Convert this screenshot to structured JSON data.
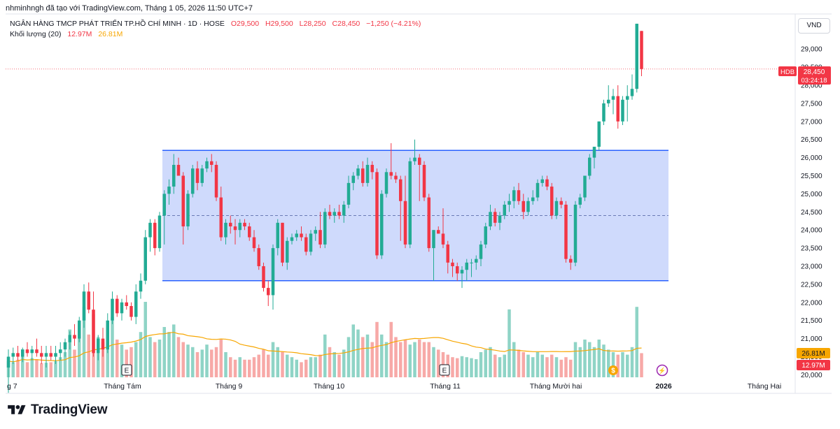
{
  "header": {
    "attribution": "nhminhngh đã tạo với TradingView.com, Tháng 1 05, 2026 11:50 UTC+7"
  },
  "legend": {
    "symbol_title": "NGÂN HÀNG TMCP PHÁT TRIỂN TP.HỒ CHÍ MINH · 1D · HOSE",
    "open": "O29,500",
    "high": "H29,500",
    "low": "L28,250",
    "close": "C28,450",
    "change": "−1,250 (−4.21%)",
    "volume_label": "Khối lượng (20)",
    "volume_value": "12.97M",
    "volume_ma_value": "26.81M"
  },
  "currency": "VND",
  "price_badges": {
    "ticker": "HDB",
    "last_price": "28,450",
    "countdown": "03:24:18",
    "volume_ma_badge": "26.81M",
    "volume_badge": "12.97M"
  },
  "event_markers": [
    {
      "label": "E",
      "type": "earnings"
    },
    {
      "label": "E",
      "type": "earnings"
    },
    {
      "label": "$",
      "type": "dividend"
    },
    {
      "label": "⚡",
      "type": "split"
    }
  ],
  "brand": {
    "name": "TradingView"
  },
  "colors": {
    "up": "#22ab94",
    "down": "#f23645",
    "up_volume": "#8fd4c6",
    "down_volume": "#f7a9a7",
    "channel_fill": "#c7d3fb",
    "channel_line": "#2962ff",
    "volume_ma": "#f7a600"
  },
  "chart_data": {
    "type": "candlestick",
    "timeframe": "1D",
    "y_axis_ticks": [
      "29,000",
      "28,500",
      "28,000",
      "27,500",
      "27,000",
      "26,500",
      "26,000",
      "25,500",
      "25,000",
      "24,500",
      "24,000",
      "23,500",
      "23,000",
      "22,500",
      "22,000",
      "21,500",
      "21,000",
      "20,500",
      "20,000"
    ],
    "x_axis_ticks": [
      "g 7",
      "Tháng Tám",
      "Tháng 9",
      "Tháng 10",
      "Tháng 11",
      "Tháng Mười hai",
      "2026",
      "Tháng Hai"
    ],
    "ylim": [
      19950,
      29950
    ],
    "channel": {
      "upper": 26200,
      "lower": 22600,
      "mid": 24400,
      "start_date": "2025-08-01",
      "end_date": "2026-01-05"
    },
    "last_price": 28450,
    "candles": [
      {
        "o": 20200,
        "h": 20700,
        "l": 19500,
        "c": 20500,
        "v": 0.32
      },
      {
        "o": 20500,
        "h": 20750,
        "l": 20300,
        "c": 20600,
        "v": 0.3
      },
      {
        "o": 20600,
        "h": 20800,
        "l": 20400,
        "c": 20500,
        "v": 0.35
      },
      {
        "o": 20500,
        "h": 20750,
        "l": 20350,
        "c": 20700,
        "v": 0.45
      },
      {
        "o": 20700,
        "h": 20900,
        "l": 20500,
        "c": 20600,
        "v": 0.3
      },
      {
        "o": 20600,
        "h": 20800,
        "l": 20400,
        "c": 20700,
        "v": 0.38
      },
      {
        "o": 20700,
        "h": 21000,
        "l": 20500,
        "c": 20600,
        "v": 0.36
      },
      {
        "o": 20600,
        "h": 20800,
        "l": 20300,
        "c": 20500,
        "v": 0.28
      },
      {
        "o": 20500,
        "h": 20800,
        "l": 20200,
        "c": 20600,
        "v": 0.29
      },
      {
        "o": 20600,
        "h": 20800,
        "l": 20400,
        "c": 20500,
        "v": 0.3
      },
      {
        "o": 20500,
        "h": 20800,
        "l": 20300,
        "c": 20600,
        "v": 0.32
      },
      {
        "o": 20600,
        "h": 20900,
        "l": 20400,
        "c": 20700,
        "v": 0.4
      },
      {
        "o": 20700,
        "h": 21000,
        "l": 20500,
        "c": 20900,
        "v": 0.5
      },
      {
        "o": 20900,
        "h": 21200,
        "l": 20700,
        "c": 21100,
        "v": 0.95
      },
      {
        "o": 21100,
        "h": 21400,
        "l": 20800,
        "c": 21000,
        "v": 0.55
      },
      {
        "o": 21000,
        "h": 21600,
        "l": 20900,
        "c": 21500,
        "v": 0.8
      },
      {
        "o": 21500,
        "h": 22500,
        "l": 21300,
        "c": 22300,
        "v": 1.4
      },
      {
        "o": 22300,
        "h": 22550,
        "l": 21700,
        "c": 21800,
        "v": 0.85
      },
      {
        "o": 21800,
        "h": 22300,
        "l": 20500,
        "c": 20600,
        "v": 1.25
      },
      {
        "o": 20600,
        "h": 21100,
        "l": 20400,
        "c": 21000,
        "v": 0.8
      },
      {
        "o": 21000,
        "h": 21300,
        "l": 20500,
        "c": 20700,
        "v": 0.7
      },
      {
        "o": 20700,
        "h": 21700,
        "l": 20600,
        "c": 21500,
        "v": 0.85
      },
      {
        "o": 21500,
        "h": 22300,
        "l": 21400,
        "c": 22100,
        "v": 1.2
      },
      {
        "o": 22100,
        "h": 22200,
        "l": 21600,
        "c": 21700,
        "v": 0.75
      },
      {
        "o": 21700,
        "h": 22100,
        "l": 21500,
        "c": 22000,
        "v": 0.65
      },
      {
        "o": 22000,
        "h": 22200,
        "l": 21800,
        "c": 21900,
        "v": 0.55
      },
      {
        "o": 21900,
        "h": 22000,
        "l": 21500,
        "c": 21600,
        "v": 0.6
      },
      {
        "o": 21600,
        "h": 22500,
        "l": 21400,
        "c": 22300,
        "v": 0.7
      },
      {
        "o": 22300,
        "h": 22800,
        "l": 22100,
        "c": 22600,
        "v": 0.9
      },
      {
        "o": 22600,
        "h": 24000,
        "l": 22500,
        "c": 23800,
        "v": 1.5
      },
      {
        "o": 23800,
        "h": 24300,
        "l": 23400,
        "c": 24200,
        "v": 0.8
      },
      {
        "o": 24200,
        "h": 24300,
        "l": 23300,
        "c": 23500,
        "v": 0.7
      },
      {
        "o": 23500,
        "h": 24500,
        "l": 23400,
        "c": 24400,
        "v": 0.75
      },
      {
        "o": 24400,
        "h": 25100,
        "l": 23600,
        "c": 25000,
        "v": 1.0
      },
      {
        "o": 25000,
        "h": 25400,
        "l": 24700,
        "c": 25200,
        "v": 0.9
      },
      {
        "o": 25200,
        "h": 26100,
        "l": 25000,
        "c": 25800,
        "v": 1.05
      },
      {
        "o": 25800,
        "h": 26000,
        "l": 25500,
        "c": 25500,
        "v": 0.8
      },
      {
        "o": 25500,
        "h": 25600,
        "l": 23600,
        "c": 24100,
        "v": 0.7
      },
      {
        "o": 24100,
        "h": 25100,
        "l": 24000,
        "c": 25000,
        "v": 0.65
      },
      {
        "o": 25000,
        "h": 25800,
        "l": 24900,
        "c": 25700,
        "v": 0.6
      },
      {
        "o": 25700,
        "h": 25900,
        "l": 25100,
        "c": 25300,
        "v": 0.5
      },
      {
        "o": 25300,
        "h": 25800,
        "l": 25200,
        "c": 25700,
        "v": 0.55
      },
      {
        "o": 25700,
        "h": 26000,
        "l": 25600,
        "c": 25900,
        "v": 0.65
      },
      {
        "o": 25900,
        "h": 26100,
        "l": 25600,
        "c": 25800,
        "v": 0.55
      },
      {
        "o": 25800,
        "h": 25900,
        "l": 24800,
        "c": 24900,
        "v": 0.6
      },
      {
        "o": 24900,
        "h": 25200,
        "l": 23700,
        "c": 23800,
        "v": 0.75
      },
      {
        "o": 23800,
        "h": 24300,
        "l": 23600,
        "c": 24200,
        "v": 0.5
      },
      {
        "o": 24200,
        "h": 24400,
        "l": 23900,
        "c": 24100,
        "v": 0.4
      },
      {
        "o": 24100,
        "h": 24300,
        "l": 23600,
        "c": 24000,
        "v": 0.35
      },
      {
        "o": 24000,
        "h": 24300,
        "l": 23800,
        "c": 24200,
        "v": 0.4
      },
      {
        "o": 24200,
        "h": 24300,
        "l": 24000,
        "c": 24100,
        "v": 0.35
      },
      {
        "o": 24100,
        "h": 24200,
        "l": 23700,
        "c": 23800,
        "v": 0.35
      },
      {
        "o": 23800,
        "h": 24000,
        "l": 23400,
        "c": 23500,
        "v": 0.4
      },
      {
        "o": 23500,
        "h": 23600,
        "l": 22900,
        "c": 23000,
        "v": 0.45
      },
      {
        "o": 23000,
        "h": 23100,
        "l": 22300,
        "c": 22400,
        "v": 0.55
      },
      {
        "o": 22400,
        "h": 22600,
        "l": 21900,
        "c": 22200,
        "v": 0.45
      },
      {
        "o": 22200,
        "h": 23600,
        "l": 21800,
        "c": 23500,
        "v": 0.7
      },
      {
        "o": 23500,
        "h": 24300,
        "l": 23300,
        "c": 24200,
        "v": 0.6
      },
      {
        "o": 24200,
        "h": 24200,
        "l": 23000,
        "c": 23100,
        "v": 0.5
      },
      {
        "o": 23100,
        "h": 23800,
        "l": 22900,
        "c": 23700,
        "v": 0.45
      },
      {
        "o": 23700,
        "h": 23900,
        "l": 23600,
        "c": 23800,
        "v": 0.4
      },
      {
        "o": 23800,
        "h": 24000,
        "l": 23700,
        "c": 23900,
        "v": 0.35
      },
      {
        "o": 23900,
        "h": 24100,
        "l": 23700,
        "c": 23800,
        "v": 0.3
      },
      {
        "o": 23800,
        "h": 23900,
        "l": 23300,
        "c": 23400,
        "v": 0.35
      },
      {
        "o": 23400,
        "h": 24000,
        "l": 23300,
        "c": 23900,
        "v": 0.4
      },
      {
        "o": 23900,
        "h": 24100,
        "l": 23700,
        "c": 24000,
        "v": 0.4
      },
      {
        "o": 24000,
        "h": 24500,
        "l": 23500,
        "c": 23600,
        "v": 0.45
      },
      {
        "o": 23600,
        "h": 24600,
        "l": 23500,
        "c": 24500,
        "v": 0.85
      },
      {
        "o": 24500,
        "h": 24700,
        "l": 24300,
        "c": 24400,
        "v": 0.6
      },
      {
        "o": 24400,
        "h": 24600,
        "l": 24200,
        "c": 24500,
        "v": 0.5
      },
      {
        "o": 24500,
        "h": 24700,
        "l": 24300,
        "c": 24400,
        "v": 0.45
      },
      {
        "o": 24400,
        "h": 24800,
        "l": 24200,
        "c": 24700,
        "v": 0.55
      },
      {
        "o": 24700,
        "h": 25500,
        "l": 24600,
        "c": 25300,
        "v": 0.8
      },
      {
        "o": 25300,
        "h": 25600,
        "l": 25100,
        "c": 25500,
        "v": 1.05
      },
      {
        "o": 25500,
        "h": 25800,
        "l": 25400,
        "c": 25700,
        "v": 0.95
      },
      {
        "o": 25700,
        "h": 25900,
        "l": 25200,
        "c": 25300,
        "v": 0.8
      },
      {
        "o": 25300,
        "h": 26000,
        "l": 25200,
        "c": 25800,
        "v": 0.85
      },
      {
        "o": 25800,
        "h": 25900,
        "l": 25400,
        "c": 25600,
        "v": 0.7
      },
      {
        "o": 25600,
        "h": 25700,
        "l": 23200,
        "c": 23300,
        "v": 1.1
      },
      {
        "o": 23300,
        "h": 25100,
        "l": 23200,
        "c": 25000,
        "v": 0.85
      },
      {
        "o": 25000,
        "h": 25700,
        "l": 24900,
        "c": 25600,
        "v": 0.7
      },
      {
        "o": 25600,
        "h": 26400,
        "l": 25400,
        "c": 25500,
        "v": 1.1
      },
      {
        "o": 25500,
        "h": 25600,
        "l": 25300,
        "c": 25400,
        "v": 0.8
      },
      {
        "o": 25400,
        "h": 25500,
        "l": 23700,
        "c": 24800,
        "v": 0.7
      },
      {
        "o": 24800,
        "h": 25500,
        "l": 23500,
        "c": 23600,
        "v": 0.75
      },
      {
        "o": 23600,
        "h": 26000,
        "l": 23500,
        "c": 25900,
        "v": 0.65
      },
      {
        "o": 25900,
        "h": 26500,
        "l": 25800,
        "c": 26000,
        "v": 0.7
      },
      {
        "o": 26000,
        "h": 26100,
        "l": 24800,
        "c": 25800,
        "v": 0.75
      },
      {
        "o": 25800,
        "h": 25900,
        "l": 24800,
        "c": 24900,
        "v": 0.7
      },
      {
        "o": 24900,
        "h": 25000,
        "l": 23400,
        "c": 23500,
        "v": 0.7
      },
      {
        "o": 23500,
        "h": 24000,
        "l": 22600,
        "c": 24000,
        "v": 0.6
      },
      {
        "o": 24000,
        "h": 24100,
        "l": 23900,
        "c": 23900,
        "v": 0.55
      },
      {
        "o": 23900,
        "h": 24600,
        "l": 23500,
        "c": 23600,
        "v": 0.5
      },
      {
        "o": 23600,
        "h": 23700,
        "l": 22800,
        "c": 23100,
        "v": 0.45
      },
      {
        "o": 23100,
        "h": 23200,
        "l": 22700,
        "c": 23000,
        "v": 0.4
      },
      {
        "o": 23000,
        "h": 23100,
        "l": 22600,
        "c": 22800,
        "v": 0.38
      },
      {
        "o": 22800,
        "h": 23000,
        "l": 22400,
        "c": 22900,
        "v": 0.42
      },
      {
        "o": 22900,
        "h": 23200,
        "l": 22600,
        "c": 23100,
        "v": 0.4
      },
      {
        "o": 23100,
        "h": 23200,
        "l": 22700,
        "c": 23100,
        "v": 0.38
      },
      {
        "o": 23100,
        "h": 23300,
        "l": 22900,
        "c": 23200,
        "v": 0.36
      },
      {
        "o": 23200,
        "h": 23700,
        "l": 23000,
        "c": 23600,
        "v": 0.5
      },
      {
        "o": 23600,
        "h": 24200,
        "l": 23500,
        "c": 24100,
        "v": 0.55
      },
      {
        "o": 24100,
        "h": 24700,
        "l": 24000,
        "c": 24500,
        "v": 0.6
      },
      {
        "o": 24500,
        "h": 24600,
        "l": 24100,
        "c": 24200,
        "v": 0.45
      },
      {
        "o": 24200,
        "h": 24500,
        "l": 24000,
        "c": 24400,
        "v": 0.4
      },
      {
        "o": 24400,
        "h": 24800,
        "l": 24300,
        "c": 24700,
        "v": 0.45
      },
      {
        "o": 24700,
        "h": 25000,
        "l": 24500,
        "c": 24800,
        "v": 1.35
      },
      {
        "o": 24800,
        "h": 25200,
        "l": 24600,
        "c": 25100,
        "v": 0.7
      },
      {
        "o": 25100,
        "h": 25300,
        "l": 24700,
        "c": 24800,
        "v": 0.55
      },
      {
        "o": 24800,
        "h": 25000,
        "l": 24300,
        "c": 24500,
        "v": 0.5
      },
      {
        "o": 24500,
        "h": 24900,
        "l": 24400,
        "c": 24800,
        "v": 0.45
      },
      {
        "o": 24800,
        "h": 25100,
        "l": 24700,
        "c": 24900,
        "v": 0.4
      },
      {
        "o": 24900,
        "h": 25400,
        "l": 24800,
        "c": 25300,
        "v": 0.5
      },
      {
        "o": 25300,
        "h": 25500,
        "l": 25200,
        "c": 25400,
        "v": 0.45
      },
      {
        "o": 25400,
        "h": 25500,
        "l": 25100,
        "c": 25200,
        "v": 0.4
      },
      {
        "o": 25200,
        "h": 25300,
        "l": 24300,
        "c": 24400,
        "v": 0.45
      },
      {
        "o": 24400,
        "h": 24900,
        "l": 24300,
        "c": 24800,
        "v": 0.4
      },
      {
        "o": 24800,
        "h": 24900,
        "l": 24600,
        "c": 24700,
        "v": 0.35
      },
      {
        "o": 24700,
        "h": 24800,
        "l": 23100,
        "c": 23200,
        "v": 0.4
      },
      {
        "o": 23200,
        "h": 23300,
        "l": 22900,
        "c": 23100,
        "v": 0.35
      },
      {
        "o": 23100,
        "h": 24800,
        "l": 23000,
        "c": 24700,
        "v": 0.7
      },
      {
        "o": 24700,
        "h": 25000,
        "l": 24600,
        "c": 24900,
        "v": 0.6
      },
      {
        "o": 24900,
        "h": 25500,
        "l": 24800,
        "c": 25500,
        "v": 0.75
      },
      {
        "o": 25500,
        "h": 26100,
        "l": 25400,
        "c": 26000,
        "v": 0.7
      },
      {
        "o": 26000,
        "h": 26300,
        "l": 25700,
        "c": 26300,
        "v": 0.6
      },
      {
        "o": 26300,
        "h": 27000,
        "l": 26200,
        "c": 27000,
        "v": 0.75
      },
      {
        "o": 27000,
        "h": 27600,
        "l": 26900,
        "c": 27500,
        "v": 0.65
      },
      {
        "o": 27500,
        "h": 28000,
        "l": 27400,
        "c": 27600,
        "v": 0.55
      },
      {
        "o": 27600,
        "h": 27900,
        "l": 27200,
        "c": 27700,
        "v": 0.5
      },
      {
        "o": 27700,
        "h": 28000,
        "l": 26800,
        "c": 27000,
        "v": 0.45
      },
      {
        "o": 27000,
        "h": 27700,
        "l": 26900,
        "c": 27600,
        "v": 0.5
      },
      {
        "o": 27600,
        "h": 28000,
        "l": 27000,
        "c": 27700,
        "v": 0.45
      },
      {
        "o": 27700,
        "h": 28300,
        "l": 27600,
        "c": 27900,
        "v": 0.6
      },
      {
        "o": 27900,
        "h": 29700,
        "l": 27800,
        "c": 29700,
        "v": 1.4
      },
      {
        "o": 29500,
        "h": 29500,
        "l": 28250,
        "c": 28450,
        "v": 0.48
      }
    ]
  }
}
